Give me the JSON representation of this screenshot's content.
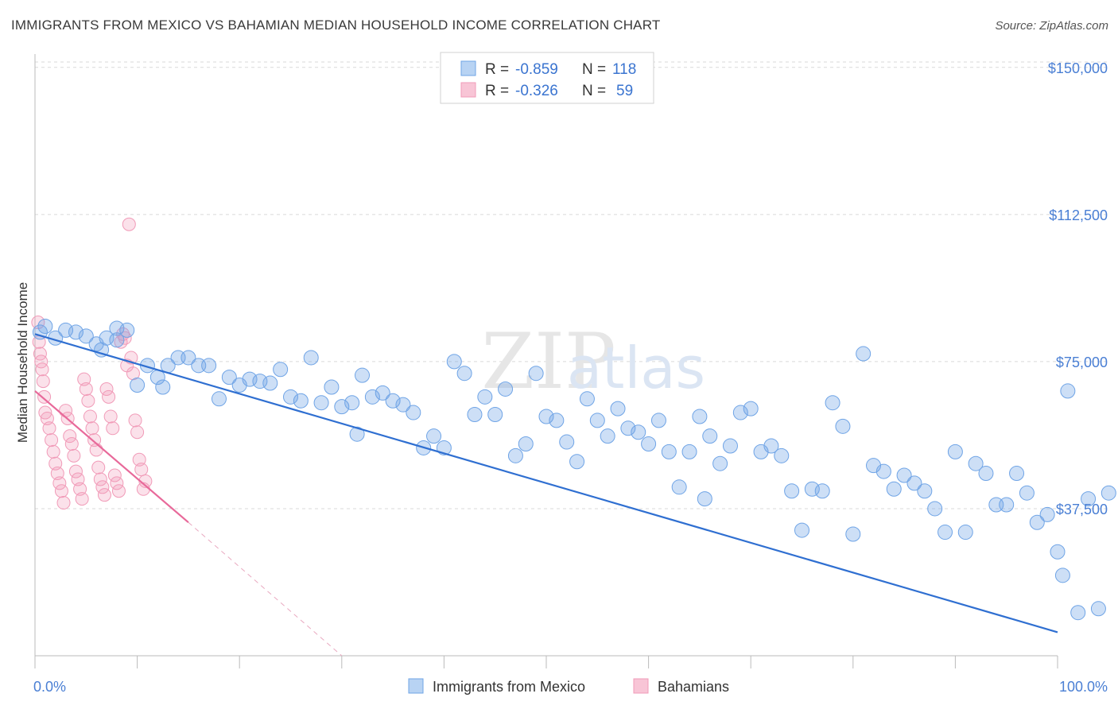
{
  "title": "IMMIGRANTS FROM MEXICO VS BAHAMIAN MEDIAN HOUSEHOLD INCOME CORRELATION CHART",
  "source": "Source: ZipAtlas.com",
  "watermark": {
    "zip": "ZIP",
    "atlas": "atlas"
  },
  "colors": {
    "blue": "#6fa4e6",
    "blue_line": "#2f6fd1",
    "pink": "#f19bb8",
    "pink_line": "#e8699a",
    "axis_label": "#4a7fd4",
    "grid": "#d9d9d9"
  },
  "legend_top": [
    {
      "swatch": "blue",
      "r_label": "R = ",
      "r_value": "-0.859",
      "n_label": "N = ",
      "n_value": "118"
    },
    {
      "swatch": "pink",
      "r_label": "R = ",
      "r_value": "-0.326",
      "n_label": "N = ",
      "n_value": "59"
    }
  ],
  "legend_bottom": [
    "Immigrants from Mexico",
    "Bahamians"
  ],
  "chart_data": {
    "type": "scatter",
    "ylabel": "Median Household Income",
    "xlim": [
      0,
      100
    ],
    "ylim": [
      0,
      153000
    ],
    "x_tick_labels": [
      "0.0%",
      "100.0%"
    ],
    "y_ticks": [
      37500,
      75000,
      112500,
      150000
    ],
    "y_tick_labels": [
      "$37,500",
      "$75,000",
      "$112,500",
      "$150,000"
    ],
    "grid": "horizontal dashed",
    "series": [
      {
        "name": "Immigrants from Mexico",
        "color": "blue",
        "trend": {
          "x": [
            0,
            100
          ],
          "y": [
            82000,
            6000
          ]
        },
        "points": [
          [
            0.5,
            82500
          ],
          [
            1,
            84000
          ],
          [
            2,
            81000
          ],
          [
            3,
            83000
          ],
          [
            4,
            82500
          ],
          [
            5,
            81500
          ],
          [
            6,
            79500
          ],
          [
            6.5,
            78000
          ],
          [
            7,
            81000
          ],
          [
            8,
            80500
          ],
          [
            8,
            83500
          ],
          [
            9,
            83000
          ],
          [
            10,
            69000
          ],
          [
            11,
            74000
          ],
          [
            12,
            71000
          ],
          [
            12.5,
            68500
          ],
          [
            13,
            74000
          ],
          [
            14,
            76000
          ],
          [
            15,
            76000
          ],
          [
            16,
            74000
          ],
          [
            17,
            74000
          ],
          [
            18,
            65500
          ],
          [
            19,
            71000
          ],
          [
            20,
            69000
          ],
          [
            21,
            70500
          ],
          [
            22,
            70000
          ],
          [
            23,
            69500
          ],
          [
            24,
            73000
          ],
          [
            25,
            66000
          ],
          [
            26,
            65000
          ],
          [
            27,
            76000
          ],
          [
            28,
            64500
          ],
          [
            29,
            68500
          ],
          [
            30,
            63500
          ],
          [
            31,
            64500
          ],
          [
            31.5,
            56500
          ],
          [
            32,
            71500
          ],
          [
            33,
            66000
          ],
          [
            34,
            67000
          ],
          [
            35,
            65000
          ],
          [
            36,
            64000
          ],
          [
            37,
            62000
          ],
          [
            38,
            53000
          ],
          [
            39,
            56000
          ],
          [
            40,
            53000
          ],
          [
            41,
            75000
          ],
          [
            42,
            72000
          ],
          [
            43,
            61500
          ],
          [
            44,
            66000
          ],
          [
            45,
            61500
          ],
          [
            46,
            68000
          ],
          [
            47,
            51000
          ],
          [
            48,
            54000
          ],
          [
            49,
            72000
          ],
          [
            50,
            61000
          ],
          [
            51,
            60000
          ],
          [
            52,
            54500
          ],
          [
            53,
            49500
          ],
          [
            54,
            65500
          ],
          [
            55,
            60000
          ],
          [
            56,
            56000
          ],
          [
            57,
            63000
          ],
          [
            58,
            58000
          ],
          [
            59,
            57000
          ],
          [
            60,
            54000
          ],
          [
            61,
            60000
          ],
          [
            62,
            52000
          ],
          [
            63,
            43000
          ],
          [
            64,
            52000
          ],
          [
            65,
            61000
          ],
          [
            65.5,
            40000
          ],
          [
            66,
            56000
          ],
          [
            67,
            49000
          ],
          [
            68,
            53500
          ],
          [
            69,
            62000
          ],
          [
            70,
            63000
          ],
          [
            71,
            52000
          ],
          [
            72,
            53500
          ],
          [
            73,
            51000
          ],
          [
            74,
            42000
          ],
          [
            75,
            32000
          ],
          [
            76,
            42500
          ],
          [
            77,
            42000
          ],
          [
            78,
            64500
          ],
          [
            79,
            58500
          ],
          [
            80,
            31000
          ],
          [
            81,
            77000
          ],
          [
            82,
            48500
          ],
          [
            83,
            47000
          ],
          [
            84,
            42500
          ],
          [
            85,
            46000
          ],
          [
            86,
            44000
          ],
          [
            87,
            42000
          ],
          [
            88,
            37500
          ],
          [
            89,
            31500
          ],
          [
            90,
            52000
          ],
          [
            91,
            31500
          ],
          [
            92,
            49000
          ],
          [
            93,
            46500
          ],
          [
            94,
            38500
          ],
          [
            95,
            38500
          ],
          [
            96,
            46500
          ],
          [
            97,
            41500
          ],
          [
            98,
            34000
          ],
          [
            99,
            36000
          ],
          [
            100,
            26500
          ],
          [
            100.5,
            20500
          ],
          [
            101,
            67500
          ],
          [
            102,
            11000
          ],
          [
            103,
            40000
          ],
          [
            104,
            12000
          ],
          [
            105,
            41500
          ]
        ]
      },
      {
        "name": "Bahamians",
        "color": "pink",
        "trend": {
          "x": [
            0,
            15
          ],
          "y": [
            67500,
            34000
          ]
        },
        "trend_extension": {
          "x": [
            15,
            30
          ],
          "y": [
            34000,
            0
          ]
        },
        "points": [
          [
            0.3,
            85000
          ],
          [
            0.4,
            80000
          ],
          [
            0.5,
            77000
          ],
          [
            0.6,
            75000
          ],
          [
            0.7,
            73000
          ],
          [
            0.8,
            70000
          ],
          [
            0.9,
            66000
          ],
          [
            1,
            62000
          ],
          [
            1.2,
            60500
          ],
          [
            1.4,
            58000
          ],
          [
            1.6,
            55000
          ],
          [
            1.8,
            52000
          ],
          [
            2,
            49000
          ],
          [
            2.2,
            46500
          ],
          [
            2.4,
            44000
          ],
          [
            2.6,
            42000
          ],
          [
            2.8,
            39000
          ],
          [
            3,
            62500
          ],
          [
            3.2,
            60500
          ],
          [
            3.4,
            56000
          ],
          [
            3.6,
            54000
          ],
          [
            3.8,
            51000
          ],
          [
            4,
            47000
          ],
          [
            4.2,
            45000
          ],
          [
            4.4,
            42500
          ],
          [
            4.6,
            40000
          ],
          [
            4.8,
            70500
          ],
          [
            5,
            68000
          ],
          [
            5.2,
            65000
          ],
          [
            5.4,
            61000
          ],
          [
            5.6,
            58000
          ],
          [
            5.8,
            55000
          ],
          [
            6,
            52500
          ],
          [
            6.2,
            48000
          ],
          [
            6.4,
            45000
          ],
          [
            6.6,
            43000
          ],
          [
            6.8,
            41000
          ],
          [
            7,
            68000
          ],
          [
            7.2,
            66000
          ],
          [
            7.4,
            61000
          ],
          [
            7.6,
            58000
          ],
          [
            7.8,
            46000
          ],
          [
            8,
            44000
          ],
          [
            8.2,
            42000
          ],
          [
            8.4,
            80000
          ],
          [
            8.6,
            82000
          ],
          [
            8.8,
            81000
          ],
          [
            9,
            74000
          ],
          [
            9.2,
            110000
          ],
          [
            9.4,
            76000
          ],
          [
            9.6,
            72000
          ],
          [
            9.8,
            60000
          ],
          [
            10,
            57000
          ],
          [
            10.2,
            50000
          ],
          [
            10.4,
            47500
          ],
          [
            10.6,
            42500
          ],
          [
            10.8,
            44500
          ]
        ]
      }
    ]
  }
}
